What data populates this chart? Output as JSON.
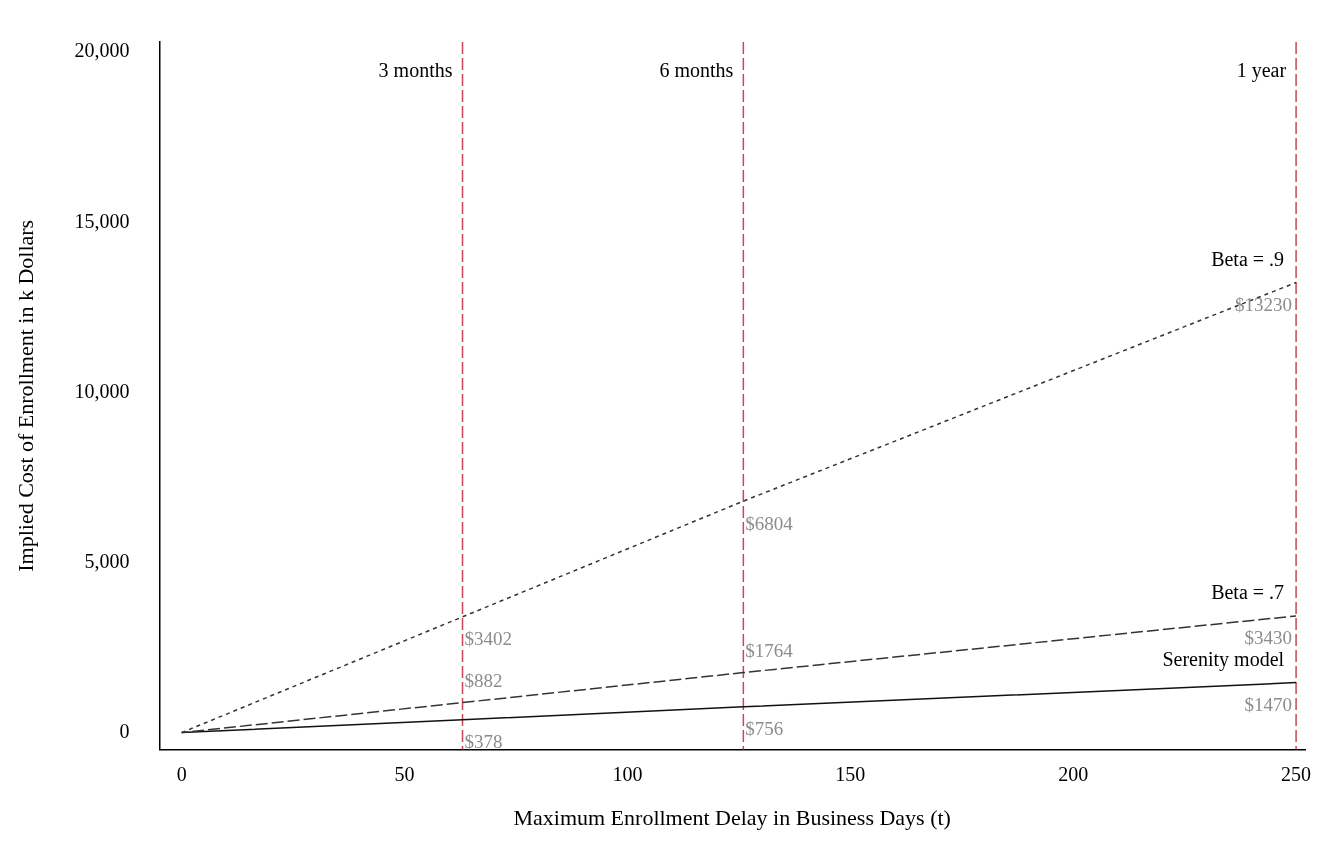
{
  "chart_data": {
    "type": "line",
    "xlabel": "Maximum Enrollment Delay in Business Days (t)",
    "ylabel": "Implied Cost of Enrollment in k Dollars",
    "x": [
      0,
      63,
      126,
      250
    ],
    "series": [
      {
        "name": "Beta = .9",
        "color": "#333333",
        "line_style": "dotted",
        "values": [
          0,
          3402,
          6804,
          13230
        ],
        "value_labels": [
          null,
          "$3402",
          "$6804",
          "$13230"
        ]
      },
      {
        "name": "Beta = .7",
        "color": "#333333",
        "line_style": "dashed",
        "values": [
          0,
          882,
          1764,
          3430
        ],
        "value_labels": [
          null,
          "$882",
          "$1764",
          "$3430"
        ]
      },
      {
        "name": "Serenity model",
        "color": "#111111",
        "line_style": "solid",
        "values": [
          0,
          378,
          756,
          1470
        ],
        "value_labels": [
          null,
          "$378",
          "$756",
          "$1470"
        ]
      }
    ],
    "xlim": [
      -5,
      252
    ],
    "xticks": [
      0,
      50,
      100,
      150,
      200,
      250
    ],
    "ylim": [
      -500,
      20300
    ],
    "yticks": [
      {
        "value": 0,
        "label": "0"
      },
      {
        "value": 5000,
        "label": "5,000"
      },
      {
        "value": 10000,
        "label": "10,000"
      },
      {
        "value": 15000,
        "label": "15,000"
      },
      {
        "value": 20000,
        "label": "20,000"
      }
    ],
    "ref_lines": [
      {
        "axis": "x",
        "value": 63,
        "label": "3 months",
        "color": "#c8475a",
        "line_style": "dashed"
      },
      {
        "axis": "x",
        "value": 126,
        "label": "6 months",
        "color": "#c8475a",
        "line_style": "dashed"
      },
      {
        "axis": "x",
        "value": 250,
        "label": "1 year",
        "color": "#c8475a",
        "line_style": "dashed"
      }
    ],
    "grid": false,
    "legend": false,
    "marker": "none"
  }
}
